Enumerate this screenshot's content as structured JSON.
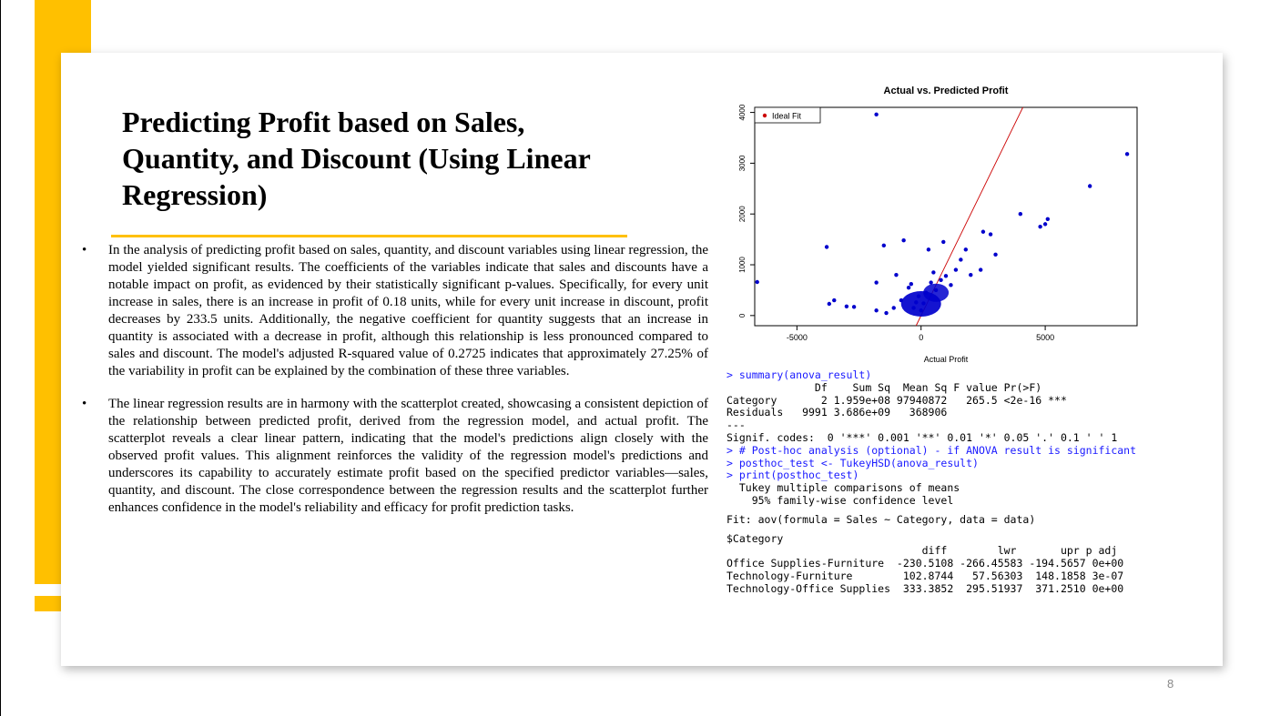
{
  "slide": {
    "title": "Predicting Profit based on Sales, Quantity, and Discount (Using Linear Regression)",
    "bullets": [
      "In the analysis of predicting profit based on sales, quantity, and discount variables using linear regression, the model yielded significant results. The coefficients of the variables indicate that sales and discounts have a notable impact on profit, as evidenced by their statistically significant p-values. Specifically, for every unit increase in sales, there is an increase in profit of 0.18 units, while for every unit increase in discount, profit decreases by 233.5 units. Additionally, the negative coefficient for quantity suggests that an increase in quantity is associated with a decrease in profit, although this relationship is less pronounced compared to sales and discount. The model's adjusted R-squared value of 0.2725 indicates that approximately 27.25% of the variability in profit can be explained by the combination of these three variables.",
      "The linear regression results are in harmony with the scatterplot created, showcasing a consistent depiction of the relationship between predicted profit, derived from the regression model, and actual profit. The scatterplot reveals a clear linear pattern, indicating that the model's predictions align closely with the observed profit values. This alignment reinforces the validity of the regression model's predictions and underscores its capability to accurately estimate profit based on the specified predictor variables—sales, quantity, and discount. The close correspondence between the regression results and the scatterplot further enhances confidence in the model's reliability and efficacy for profit prediction tasks."
    ],
    "bullet_symbol": "•",
    "page_number": "8",
    "colors": {
      "accent": "#ffc000",
      "console_command": "#1a1aff",
      "points": "#0000cc",
      "fit_line": "#cc0000"
    }
  },
  "chart_data": {
    "type": "scatter",
    "title": "Actual vs. Predicted Profit",
    "xlabel": "Actual Profit",
    "ylabel": "",
    "xlim": [
      -6700,
      8700
    ],
    "ylim": [
      -200,
      4100
    ],
    "x_ticks": [
      -5000,
      0,
      5000
    ],
    "y_ticks": [
      0,
      1000,
      2000,
      3000,
      4000
    ],
    "grid": false,
    "legend": {
      "position": "top-left",
      "entries": [
        "Ideal Fit"
      ]
    },
    "fit_line": {
      "slope": 1,
      "intercept": 0
    },
    "points": [
      [
        -6600,
        660
      ],
      [
        -3800,
        1350
      ],
      [
        -3700,
        230
      ],
      [
        -3500,
        300
      ],
      [
        -3000,
        180
      ],
      [
        -2700,
        170
      ],
      [
        -1800,
        3960
      ],
      [
        -1800,
        100
      ],
      [
        -1800,
        650
      ],
      [
        -1500,
        1380
      ],
      [
        -1400,
        50
      ],
      [
        -1100,
        150
      ],
      [
        -1000,
        800
      ],
      [
        -800,
        300
      ],
      [
        -700,
        1480
      ],
      [
        -500,
        550
      ],
      [
        -400,
        620
      ],
      [
        -300,
        150
      ],
      [
        -200,
        260
      ],
      [
        -100,
        380
      ],
      [
        0,
        100
      ],
      [
        100,
        240
      ],
      [
        200,
        450
      ],
      [
        300,
        1300
      ],
      [
        400,
        650
      ],
      [
        500,
        850
      ],
      [
        600,
        500
      ],
      [
        800,
        700
      ],
      [
        900,
        1450
      ],
      [
        1000,
        780
      ],
      [
        1200,
        600
      ],
      [
        1400,
        900
      ],
      [
        1600,
        1100
      ],
      [
        1800,
        1300
      ],
      [
        2000,
        800
      ],
      [
        2400,
        900
      ],
      [
        2500,
        1650
      ],
      [
        2800,
        1600
      ],
      [
        3000,
        1200
      ],
      [
        4000,
        2000
      ],
      [
        4800,
        1750
      ],
      [
        5000,
        1800
      ],
      [
        5100,
        1900
      ],
      [
        6800,
        2550
      ],
      [
        8300,
        3180
      ]
    ]
  },
  "console": {
    "lines": [
      {
        "text": "> summary(anova_result)",
        "kind": "cmd"
      },
      {
        "text": "              Df    Sum Sq  Mean Sq F value Pr(>F)",
        "kind": "out"
      },
      {
        "text": "Category       2 1.959e+08 97940872   265.5 <2e-16 ***",
        "kind": "out"
      },
      {
        "text": "Residuals   9991 3.686e+09   368906",
        "kind": "out"
      },
      {
        "text": "---",
        "kind": "out"
      },
      {
        "text": "Signif. codes:  0 '***' 0.001 '**' 0.01 '*' 0.05 '.' 0.1 ' ' 1",
        "kind": "out"
      },
      {
        "text": "> # Post-hoc analysis (optional) - if ANOVA result is significant",
        "kind": "cmd"
      },
      {
        "text": "> posthoc_test <- TukeyHSD(anova_result)",
        "kind": "cmd"
      },
      {
        "text": "> print(posthoc_test)",
        "kind": "cmd"
      },
      {
        "text": "  Tukey multiple comparisons of means",
        "kind": "out"
      },
      {
        "text": "    95% family-wise confidence level",
        "kind": "out"
      },
      {
        "text": "",
        "kind": "gap"
      },
      {
        "text": "Fit: aov(formula = Sales ~ Category, data = data)",
        "kind": "out"
      },
      {
        "text": "",
        "kind": "gap"
      },
      {
        "text": "$Category",
        "kind": "out"
      },
      {
        "text": "                               diff        lwr       upr p adj",
        "kind": "out"
      },
      {
        "text": "Office Supplies-Furniture  -230.5108 -266.45583 -194.5657 0e+00",
        "kind": "out"
      },
      {
        "text": "Technology-Furniture        102.8744   57.56303  148.1858 3e-07",
        "kind": "out"
      },
      {
        "text": "Technology-Office Supplies  333.3852  295.51937  371.2510 0e+00",
        "kind": "out"
      }
    ]
  }
}
